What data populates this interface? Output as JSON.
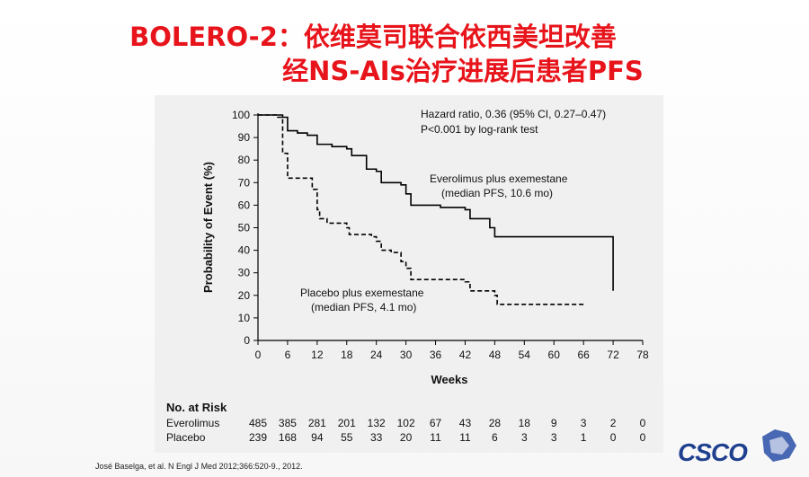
{
  "slide": {
    "title_line1": "BOLERO-2：依维莫司联合依西美坦改善",
    "title_line2": "经NS-AIs治疗进展后患者PFS",
    "citation": "José Baselga, et al. N Engl J Med 2012;366:520-9., 2012.",
    "logo_text": "CSCO"
  },
  "colors": {
    "title": "#e8141b",
    "logo": "#1f3f8f",
    "curve": "#000000"
  },
  "chart_data": {
    "type": "line",
    "xlabel": "Weeks",
    "ylabel": "Probability of Event (%)",
    "xlim": [
      0,
      78
    ],
    "ylim": [
      0,
      100
    ],
    "x_ticks": [
      0,
      6,
      12,
      18,
      24,
      30,
      36,
      42,
      48,
      54,
      60,
      66,
      72,
      78
    ],
    "y_ticks": [
      0,
      10,
      20,
      30,
      40,
      50,
      60,
      70,
      80,
      90,
      100
    ],
    "grid": false,
    "annotations": {
      "hazard_line1": "Hazard ratio, 0.36 (95% CI, 0.27–0.47)",
      "hazard_line2": "P<0.001 by log-rank test",
      "evero_line1": "Everolimus plus exemestane",
      "evero_line2": "(median PFS, 10.6 mo)",
      "placebo_line1": "Placebo plus exemestane",
      "placebo_line2": "(median PFS, 4.1 mo)"
    },
    "series": [
      {
        "style": "solid",
        "points": [
          [
            0,
            100
          ],
          [
            5,
            99
          ],
          [
            6,
            93
          ],
          [
            8,
            92
          ],
          [
            10,
            91
          ],
          [
            12,
            87
          ],
          [
            15,
            86
          ],
          [
            18,
            85
          ],
          [
            19,
            82
          ],
          [
            22,
            76
          ],
          [
            24,
            75
          ],
          [
            25,
            70
          ],
          [
            29,
            69
          ],
          [
            30,
            65
          ],
          [
            31,
            60
          ],
          [
            37,
            59
          ],
          [
            42,
            58
          ],
          [
            43,
            54
          ],
          [
            47,
            50
          ],
          [
            48,
            46
          ],
          [
            72,
            46
          ],
          [
            72,
            22
          ]
        ]
      },
      {
        "style": "dashed",
        "points": [
          [
            0,
            100
          ],
          [
            4,
            99
          ],
          [
            5,
            83
          ],
          [
            6,
            72
          ],
          [
            10,
            72
          ],
          [
            11,
            67
          ],
          [
            12,
            58
          ],
          [
            12.5,
            54
          ],
          [
            14,
            52
          ],
          [
            18,
            50
          ],
          [
            18.5,
            47
          ],
          [
            23,
            46
          ],
          [
            24,
            44
          ],
          [
            25,
            40
          ],
          [
            27,
            39
          ],
          [
            29,
            35
          ],
          [
            30,
            32
          ],
          [
            31,
            27
          ],
          [
            42,
            26
          ],
          [
            43,
            22
          ],
          [
            48,
            20
          ],
          [
            48.5,
            16
          ],
          [
            66,
            16
          ]
        ]
      }
    ],
    "risk_table": {
      "header": "No. at Risk",
      "rows": [
        {
          "label": "Everolimus",
          "values": [
            "485",
            "385",
            "281",
            "201",
            "132",
            "102",
            "67",
            "43",
            "28",
            "18",
            "9",
            "3",
            "2",
            "0"
          ]
        },
        {
          "label": "Placebo",
          "values": [
            "239",
            "168",
            "94",
            "55",
            "33",
            "20",
            "11",
            "11",
            "6",
            "3",
            "3",
            "1",
            "0",
            "0"
          ]
        }
      ]
    }
  }
}
